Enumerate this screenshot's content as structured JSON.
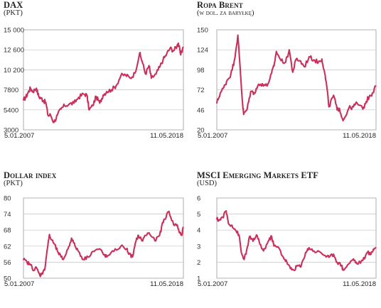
{
  "chart_data": [
    {
      "type": "line",
      "title": "DAX",
      "subtitle": "(PKT)",
      "yticks": [
        3000,
        5400,
        7800,
        10200,
        12600,
        15000
      ],
      "ytick_labels": [
        "3000",
        "5400",
        "7800",
        "10 200",
        "12 600",
        "15 000"
      ],
      "ylim": [
        3000,
        15000
      ],
      "xlim": [
        "5.01.2007",
        "11.05.2018"
      ],
      "x_start_label": "5.01.2007",
      "x_end_label": "11.05.2018",
      "color": "#c9305b",
      "series": [
        {
          "x": [
            "2007-01",
            "2007-03",
            "2007-05",
            "2007-07",
            "2007-09",
            "2007-12",
            "2008-02",
            "2008-04",
            "2008-06",
            "2008-08",
            "2008-10",
            "2008-12",
            "2009-03",
            "2009-06",
            "2009-09",
            "2009-12",
            "2010-04",
            "2010-08",
            "2010-12",
            "2011-04",
            "2011-07",
            "2011-09",
            "2011-12",
            "2012-03",
            "2012-06",
            "2012-09",
            "2012-12",
            "2013-04",
            "2013-08",
            "2013-12",
            "2014-04",
            "2014-08",
            "2014-12",
            "2015-04",
            "2015-06",
            "2015-09",
            "2015-12",
            "2016-02",
            "2016-06",
            "2016-09",
            "2016-12",
            "2017-03",
            "2017-06",
            "2017-09",
            "2017-12",
            "2018-01",
            "2018-03",
            "2018-05"
          ],
          "y": [
            6600,
            6900,
            7500,
            8000,
            7600,
            8000,
            7000,
            6800,
            6500,
            6300,
            4700,
            4800,
            3900,
            4800,
            5500,
            5900,
            6100,
            6200,
            6900,
            7300,
            7200,
            5400,
            5900,
            7000,
            6200,
            7200,
            7600,
            7800,
            8300,
            9500,
            9600,
            9200,
            9800,
            12200,
            11300,
            9700,
            10700,
            9200,
            9700,
            10500,
            11400,
            12100,
            12800,
            12500,
            13100,
            13400,
            12000,
            12900
          ]
        }
      ]
    },
    {
      "type": "line",
      "title": "Ropa Brent",
      "subtitle": "(w dol. za baryłkę)",
      "yticks": [
        20,
        46,
        72,
        98,
        124,
        150
      ],
      "ytick_labels": [
        "20",
        "46",
        "72",
        "98",
        "124",
        "150"
      ],
      "ylim": [
        20,
        150
      ],
      "xlim": [
        "5.01.2007",
        "11.05.2018"
      ],
      "x_start_label": "5.01.2007",
      "x_end_label": "11.05.2018",
      "color": "#c9305b",
      "series": [
        {
          "x": [
            "2007-01",
            "2007-04",
            "2007-07",
            "2007-10",
            "2008-01",
            "2008-04",
            "2008-07",
            "2008-09",
            "2008-11",
            "2008-12",
            "2009-03",
            "2009-06",
            "2009-09",
            "2009-12",
            "2010-04",
            "2010-08",
            "2010-12",
            "2011-02",
            "2011-04",
            "2011-08",
            "2011-12",
            "2012-03",
            "2012-06",
            "2012-09",
            "2012-12",
            "2013-04",
            "2013-08",
            "2013-12",
            "2014-04",
            "2014-07",
            "2014-09",
            "2014-11",
            "2015-01",
            "2015-05",
            "2015-08",
            "2015-10",
            "2016-01",
            "2016-06",
            "2016-10",
            "2017-01",
            "2017-06",
            "2017-09",
            "2017-12",
            "2018-02",
            "2018-05"
          ],
          "y": [
            55,
            68,
            75,
            85,
            92,
            110,
            143,
            100,
            55,
            40,
            47,
            70,
            68,
            77,
            80,
            77,
            94,
            103,
            122,
            110,
            108,
            124,
            95,
            112,
            110,
            102,
            115,
            111,
            108,
            112,
            97,
            78,
            50,
            65,
            46,
            48,
            32,
            48,
            50,
            55,
            47,
            57,
            65,
            67,
            77
          ]
        }
      ]
    },
    {
      "type": "line",
      "title": "Dollar index",
      "subtitle": "(PKT)",
      "yticks": [
        50,
        56,
        62,
        68,
        74,
        80
      ],
      "ytick_labels": [
        "50",
        "56",
        "62",
        "68",
        "74",
        "80"
      ],
      "ylim": [
        50,
        80
      ],
      "xlim": [
        "5.01.2007",
        "11.05.2018"
      ],
      "x_start_label": "5.01.2007",
      "x_end_label": "11.05.2018",
      "color": "#c9305b",
      "series": [
        {
          "x": [
            "2007-01",
            "2007-04",
            "2007-07",
            "2007-10",
            "2007-12",
            "2008-03",
            "2008-05",
            "2008-07",
            "2008-09",
            "2008-11",
            "2008-12",
            "2009-03",
            "2009-06",
            "2009-09",
            "2009-11",
            "2010-03",
            "2010-06",
            "2010-09",
            "2010-12",
            "2011-04",
            "2011-08",
            "2011-12",
            "2012-06",
            "2012-09",
            "2012-12",
            "2013-06",
            "2013-12",
            "2014-05",
            "2014-07",
            "2014-10",
            "2015-01",
            "2015-03",
            "2015-06",
            "2015-09",
            "2015-12",
            "2016-05",
            "2016-09",
            "2016-12",
            "2017-01",
            "2017-05",
            "2017-09",
            "2017-12",
            "2018-02",
            "2018-04",
            "2018-05"
          ],
          "y": [
            57,
            56,
            55,
            53,
            54,
            51,
            52,
            53,
            60,
            66,
            65,
            63,
            60,
            58,
            57,
            61,
            65,
            62,
            60,
            57,
            58,
            60,
            61,
            59,
            58,
            60,
            62,
            61,
            59,
            58,
            64,
            66,
            64,
            66,
            67,
            64,
            66,
            71,
            72,
            75,
            70,
            70,
            67,
            66,
            69
          ]
        }
      ]
    },
    {
      "type": "line",
      "title": "MSCI Emerging Markets ETF",
      "subtitle": "(USD)",
      "yticks": [
        1,
        2,
        3,
        4,
        5,
        6
      ],
      "ytick_labels": [
        "1",
        "2",
        "3",
        "4",
        "5",
        "6"
      ],
      "ylim": [
        1,
        6
      ],
      "xlim": [
        "5.01.2007",
        "11.05.2018"
      ],
      "x_start_label": "5.01.2007",
      "x_end_label": "11.05.2018",
      "color": "#c9305b",
      "series": [
        {
          "x": [
            "2007-01",
            "2007-03",
            "2007-06",
            "2007-09",
            "2007-11",
            "2008-02",
            "2008-05",
            "2008-08",
            "2008-10",
            "2008-12",
            "2009-02",
            "2009-05",
            "2009-08",
            "2009-11",
            "2010-02",
            "2010-05",
            "2010-09",
            "2010-12",
            "2011-02",
            "2011-06",
            "2011-10",
            "2012-01",
            "2012-04",
            "2012-07",
            "2012-10",
            "2013-01",
            "2013-05",
            "2013-08",
            "2013-12",
            "2014-06",
            "2014-10",
            "2015-01",
            "2015-05",
            "2015-08",
            "2015-12",
            "2016-01",
            "2016-06",
            "2016-10",
            "2017-01",
            "2017-06",
            "2017-10",
            "2018-01",
            "2018-03",
            "2018-05"
          ],
          "y": [
            4.7,
            4.6,
            4.8,
            5.2,
            4.4,
            4.3,
            4.0,
            3.7,
            2.6,
            2.2,
            2.5,
            3.6,
            3.3,
            3.7,
            3.1,
            2.7,
            3.3,
            3.6,
            3.0,
            2.9,
            2.3,
            2.0,
            1.6,
            1.5,
            1.8,
            1.7,
            2.6,
            2.9,
            2.7,
            2.6,
            2.4,
            2.3,
            2.5,
            2.0,
            1.8,
            1.5,
            1.9,
            2.2,
            1.9,
            2.1,
            2.6,
            2.5,
            2.8,
            2.9
          ]
        }
      ]
    }
  ]
}
